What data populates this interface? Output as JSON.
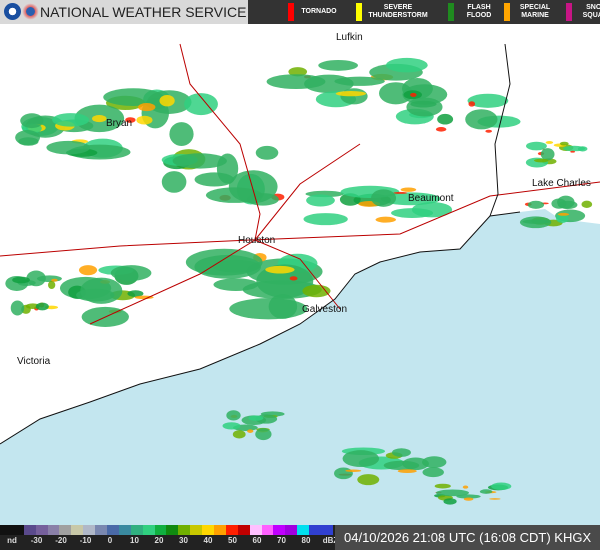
{
  "header": {
    "title": "NATIONAL WEATHER SERVICE",
    "logos": [
      "noaa-logo",
      "nws-logo"
    ],
    "legend": [
      {
        "label": "TORNADO",
        "color": "#ff0000"
      },
      {
        "label": "SEVERE THUNDERSTORM",
        "color": "#ffff00"
      },
      {
        "label": "FLASH FLOOD",
        "color": "#1f8b1f"
      },
      {
        "label": "SPECIAL MARINE",
        "color": "#ffa500"
      },
      {
        "label": "SNOW SQUALL",
        "color": "#c71585"
      }
    ]
  },
  "map": {
    "cities": [
      "Lufkin",
      "Bryan",
      "Beaumont",
      "Lake Charles",
      "Houston",
      "Galveston",
      "Victoria"
    ],
    "land_color": "#ffffff",
    "water_color": "#c3e6ef"
  },
  "footer": {
    "scale_labels": [
      "nd",
      "-30",
      "-20",
      "-10",
      "0",
      "10",
      "20",
      "30",
      "40",
      "50",
      "60",
      "70",
      "80",
      "dBZ"
    ],
    "scale_colors": [
      "#111",
      "#111",
      "#5a4a8c",
      "#76609c",
      "#8a80a8",
      "#a0a0a0",
      "#c8c8a8",
      "#b0b8c8",
      "#7a88b0",
      "#4a6aa8",
      "#3a8aa0",
      "#30b080",
      "#30d080",
      "#10b040",
      "#108a10",
      "#70b000",
      "#c8c800",
      "#ffd700",
      "#ffa000",
      "#ff2000",
      "#c00000",
      "#ffc0ff",
      "#ff60ff",
      "#c000ff",
      "#a000e0",
      "#00e0f0",
      "#3040d0",
      "#3040d0"
    ],
    "timestamp": "04/10/2026 21:08 UTC (16:08 CDT) KHGX"
  }
}
